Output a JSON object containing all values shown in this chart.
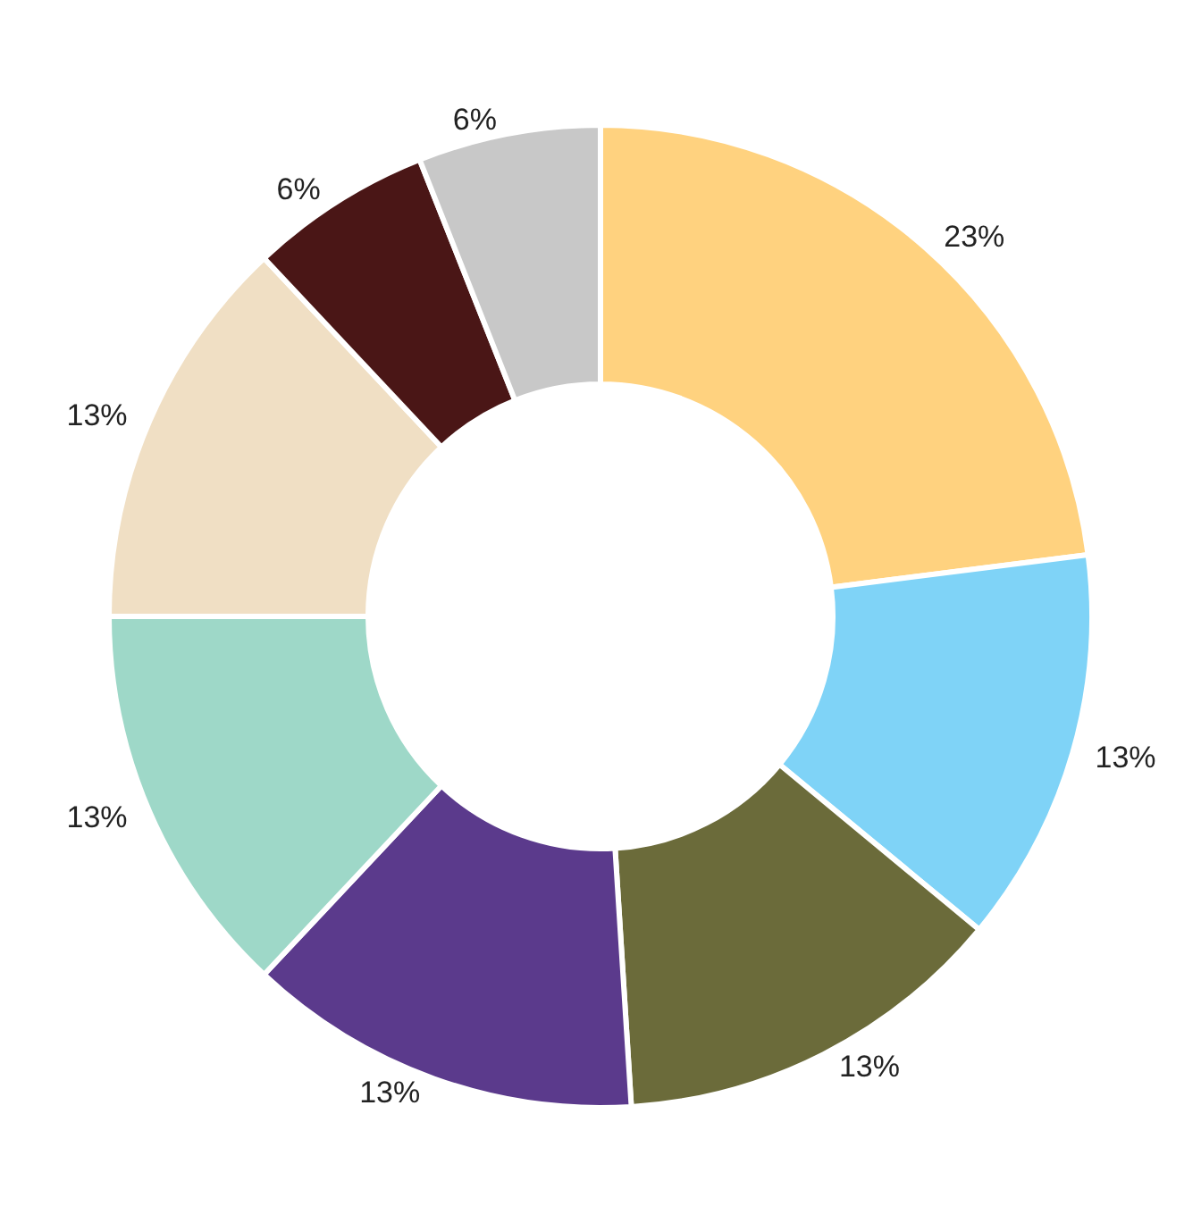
{
  "chart_data": {
    "type": "donut",
    "categories": [
      null,
      null,
      null,
      null,
      null,
      null,
      null,
      null
    ],
    "values": [
      23,
      13,
      13,
      13,
      13,
      13,
      6,
      6
    ],
    "value_labels": [
      "23%",
      "13%",
      "13%",
      "13%",
      "13%",
      "13%",
      "6%",
      "6%"
    ],
    "colors": [
      "#ffd27f",
      "#7fd3f7",
      "#6b6b3a",
      "#5b3a8c",
      "#9ed8c8",
      "#f0dfc4",
      "#4a1616",
      "#c8c8c8"
    ]
  }
}
